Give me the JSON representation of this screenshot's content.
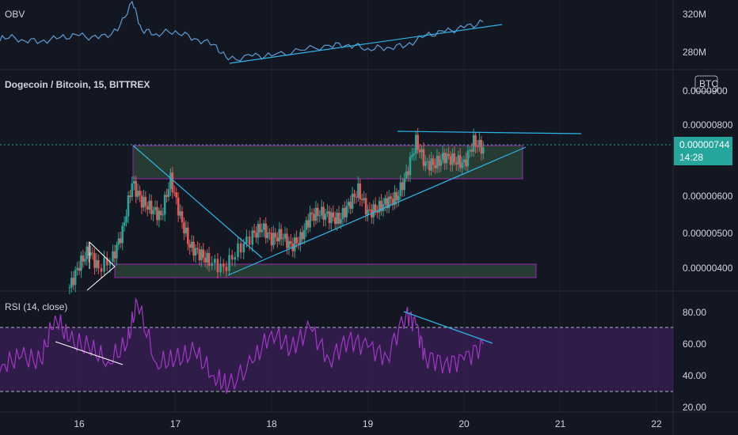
{
  "colors": {
    "background": "#131722",
    "up": "#26a69a",
    "down": "#ef5350",
    "obv_line": "#5b9bd5",
    "trendline": "#2cb5e8",
    "zone_fill": "#2d4a3a",
    "zone_border": "#9c27b0",
    "rsi_line": "#a336c8",
    "rsi_band": "#3a1f55",
    "price_tag": "#26a69a"
  },
  "obv_panel": {
    "title": "OBV",
    "ticks": [
      "320M",
      "280M"
    ]
  },
  "price_panel": {
    "title": "Dogecoin / Bitcoin, 15, BITTREX",
    "currency_badge": "BTC",
    "top_tick_partial": "0.0000900",
    "ticks": [
      "0.00000800",
      "0.00000600",
      "0.00000500",
      "0.00000400"
    ],
    "last_price": "0.00000744",
    "countdown": "14:28"
  },
  "rsi_panel": {
    "title": "RSI (14, close)",
    "ticks": [
      "80.00",
      "60.00",
      "40.00",
      "20.00"
    ]
  },
  "x_axis": {
    "labels": [
      "16",
      "17",
      "18",
      "19",
      "20",
      "21",
      "22"
    ]
  },
  "chart_data": [
    {
      "type": "line",
      "name": "OBV",
      "units": "M",
      "x": [
        15.05,
        15.2,
        15.4,
        15.6,
        15.8,
        16.0,
        16.2,
        16.4,
        16.55,
        16.65,
        16.8,
        17.0,
        17.2,
        17.4,
        17.55,
        17.8,
        18.0,
        18.3,
        18.6,
        18.8,
        19.0,
        19.2,
        19.4,
        19.6,
        19.8,
        20.0,
        20.2
      ],
      "y": [
        282,
        300,
        296,
        294,
        298,
        300,
        297,
        305,
        335,
        306,
        302,
        305,
        297,
        291,
        275,
        279,
        279,
        285,
        290,
        291,
        287,
        288,
        290,
        300,
        304,
        308,
        314
      ],
      "ylim": [
        270,
        335
      ]
    },
    {
      "type": "candlestick-approx",
      "name": "Dogecoin / Bitcoin, 15, BITTREX",
      "x": [
        15.9,
        16.0,
        16.1,
        16.2,
        16.35,
        16.45,
        16.55,
        16.65,
        16.75,
        16.85,
        16.95,
        17.05,
        17.15,
        17.25,
        17.35,
        17.5,
        17.65,
        17.8,
        17.9,
        18.0,
        18.1,
        18.2,
        18.3,
        18.4,
        18.5,
        18.6,
        18.7,
        18.8,
        18.9,
        19.0,
        19.1,
        19.2,
        19.3,
        19.4,
        19.5,
        19.6,
        19.7,
        19.8,
        19.9,
        20.0,
        20.1,
        20.2
      ],
      "close": [
        3.7e-06,
        4.3e-06,
        4.7e-06,
        4.2e-06,
        4.5e-06,
        5.2e-06,
        6.5e-06,
        6e-06,
        5.8e-06,
        5.6e-06,
        6.6e-06,
        5.6e-06,
        4.8e-06,
        4.6e-06,
        4.4e-06,
        4.2e-06,
        4.7e-06,
        5.1e-06,
        5.3e-06,
        5e-06,
        5.1e-06,
        4.8e-06,
        5e-06,
        5.6e-06,
        5.7e-06,
        5.6e-06,
        5.5e-06,
        5.9e-06,
        6.3e-06,
        5.7e-06,
        5.8e-06,
        6e-06,
        6.1e-06,
        6.7e-06,
        7.6e-06,
        7e-06,
        7e-06,
        7.2e-06,
        7.1e-06,
        7e-06,
        7.6e-06,
        7.4e-06
      ],
      "ylim": [
        3.6e-06,
        9e-06
      ]
    },
    {
      "type": "line",
      "name": "RSI (14, close)",
      "x": [
        15.0,
        15.2,
        15.4,
        15.6,
        15.75,
        15.9,
        16.1,
        16.3,
        16.5,
        16.6,
        16.8,
        17.0,
        17.2,
        17.4,
        17.55,
        17.8,
        18.0,
        18.2,
        18.4,
        18.6,
        18.8,
        19.0,
        19.2,
        19.4,
        19.5,
        19.6,
        19.8,
        20.0,
        20.2
      ],
      "y": [
        58,
        47,
        52,
        49,
        78,
        62,
        58,
        49,
        60,
        87,
        48,
        50,
        55,
        40,
        33,
        48,
        68,
        57,
        70,
        50,
        63,
        58,
        52,
        80,
        72,
        52,
        48,
        50,
        60
      ],
      "ylim": [
        20,
        90
      ],
      "bands": [
        70,
        30
      ]
    }
  ]
}
